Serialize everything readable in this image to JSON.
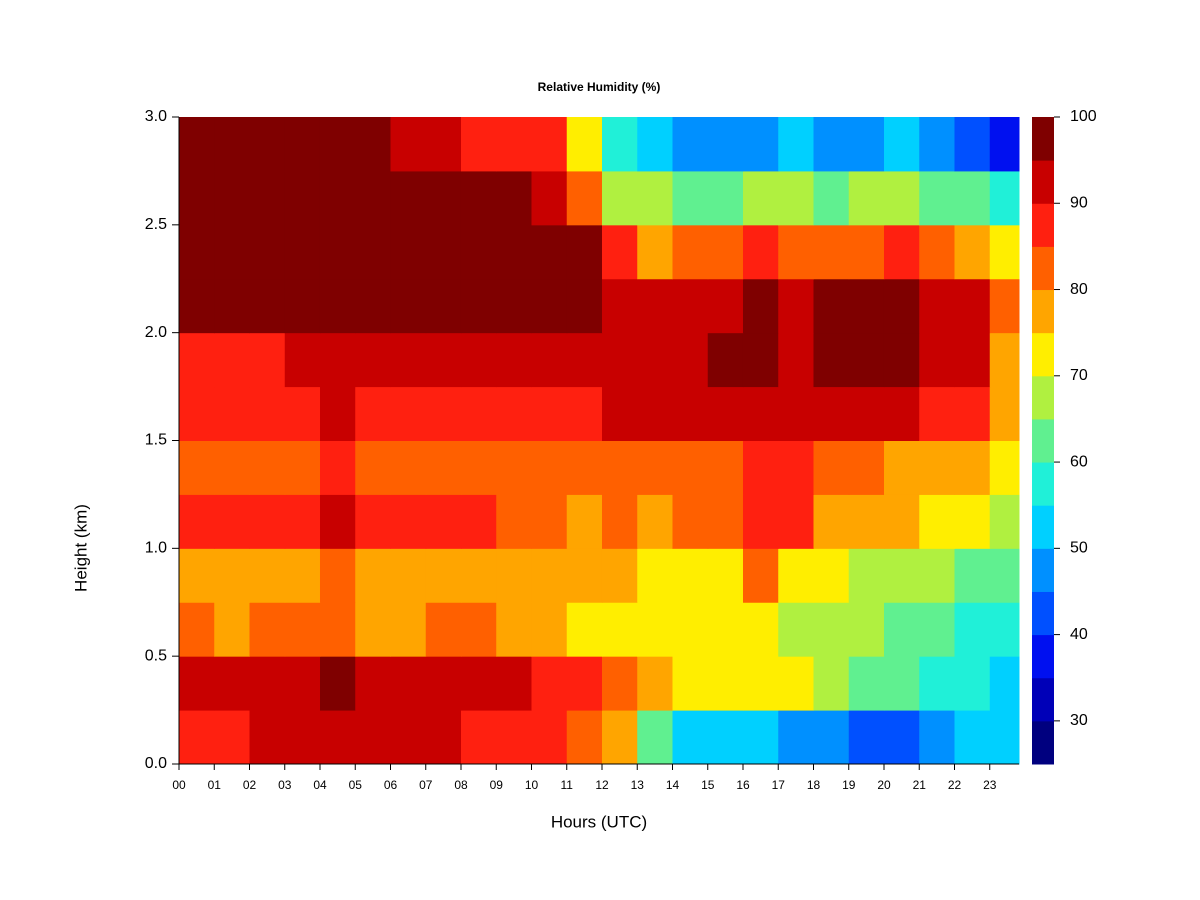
{
  "chart_data": {
    "type": "heatmap",
    "title": "Relative Humidity (%)",
    "x_label": "Hours (UTC)",
    "y_label": "Height (km)",
    "x": [
      0,
      1,
      2,
      3,
      4,
      5,
      6,
      7,
      8,
      9,
      10,
      11,
      12,
      13,
      14,
      15,
      16,
      17,
      18,
      19,
      20,
      21,
      22,
      23
    ],
    "y": [
      0,
      0.25,
      0.5,
      0.75,
      1,
      1.25,
      1.5,
      1.75,
      2,
      2.25,
      2.5,
      2.75
    ],
    "z": [
      [
        88,
        90,
        92,
        93,
        94,
        92,
        92,
        92,
        90,
        88,
        87,
        85,
        80,
        62,
        55,
        52,
        52,
        50,
        48,
        45,
        42,
        48,
        52,
        55
      ],
      [
        92,
        93,
        95,
        95,
        96,
        92,
        95,
        95,
        95,
        92,
        90,
        88,
        85,
        78,
        75,
        75,
        75,
        72,
        68,
        65,
        62,
        60,
        58,
        55
      ],
      [
        82,
        80,
        82,
        82,
        85,
        78,
        80,
        82,
        82,
        80,
        78,
        75,
        75,
        72,
        72,
        72,
        73,
        70,
        68,
        66,
        65,
        62,
        60,
        58
      ],
      [
        80,
        78,
        80,
        80,
        85,
        78,
        80,
        80,
        80,
        80,
        78,
        76,
        76,
        75,
        75,
        75,
        82,
        75,
        72,
        70,
        68,
        66,
        64,
        62
      ],
      [
        86,
        88,
        90,
        88,
        92,
        88,
        88,
        86,
        86,
        85,
        82,
        80,
        82,
        80,
        82,
        85,
        90,
        88,
        80,
        78,
        76,
        74,
        72,
        68
      ],
      [
        82,
        84,
        84,
        82,
        86,
        84,
        84,
        84,
        84,
        82,
        82,
        82,
        85,
        82,
        84,
        85,
        88,
        86,
        82,
        82,
        80,
        78,
        76,
        72
      ],
      [
        88,
        88,
        88,
        88,
        92,
        88,
        90,
        88,
        88,
        88,
        88,
        88,
        92,
        92,
        92,
        92,
        95,
        92,
        92,
        92,
        92,
        90,
        88,
        78
      ],
      [
        90,
        90,
        90,
        92,
        92,
        92,
        94,
        94,
        94,
        94,
        94,
        95,
        95,
        95,
        95,
        96,
        96,
        95,
        96,
        96,
        96,
        95,
        92,
        80
      ],
      [
        98,
        98,
        98,
        98,
        98,
        98,
        98,
        98,
        98,
        98,
        98,
        98,
        95,
        94,
        94,
        95,
        96,
        95,
        96,
        96,
        96,
        94,
        92,
        82
      ],
      [
        98,
        98,
        98,
        98,
        98,
        98,
        98,
        98,
        98,
        98,
        98,
        96,
        86,
        80,
        82,
        84,
        88,
        84,
        82,
        84,
        86,
        84,
        80,
        72
      ],
      [
        98,
        98,
        98,
        98,
        98,
        98,
        98,
        98,
        98,
        96,
        94,
        84,
        70,
        66,
        64,
        65,
        68,
        66,
        65,
        66,
        70,
        65,
        62,
        56
      ],
      [
        98,
        98,
        98,
        98,
        98,
        96,
        95,
        92,
        90,
        88,
        86,
        72,
        56,
        52,
        50,
        48,
        48,
        52,
        50,
        50,
        52,
        50,
        45,
        40
      ]
    ],
    "xlim": [
      0,
      23.83
    ],
    "ylim": [
      0,
      3
    ],
    "xticks": [
      {
        "value": 0,
        "label": "00"
      },
      {
        "value": 1,
        "label": "01"
      },
      {
        "value": 2,
        "label": "02"
      },
      {
        "value": 3,
        "label": "03"
      },
      {
        "value": 4,
        "label": "04"
      },
      {
        "value": 5,
        "label": "05"
      },
      {
        "value": 6,
        "label": "06"
      },
      {
        "value": 7,
        "label": "07"
      },
      {
        "value": 8,
        "label": "08"
      },
      {
        "value": 9,
        "label": "09"
      },
      10,
      11,
      12,
      13,
      14,
      15,
      16,
      17,
      18,
      19,
      20,
      21,
      22,
      23
    ],
    "yticks": [
      {
        "value": 0,
        "label": "0.0"
      },
      0.5,
      {
        "value": 1,
        "label": "1.0"
      },
      1.5,
      {
        "value": 2,
        "label": "2.0"
      },
      2.5,
      {
        "value": 3,
        "label": "3.0"
      }
    ],
    "levels": [
      25,
      30,
      35,
      40,
      45,
      50,
      55,
      60,
      65,
      70,
      75,
      80,
      85,
      90,
      95,
      100
    ],
    "colors": [
      "#00007f",
      "#0000b8",
      "#0010f0",
      "#0050ff",
      "#0090ff",
      "#00d0ff",
      "#20f0d8",
      "#60f090",
      "#b0f040",
      "#ffee00",
      "#ffa500",
      "#ff6000",
      "#ff2010",
      "#c80000",
      "#7f0000"
    ],
    "colorbar_ticks": [
      30,
      40,
      50,
      60,
      70,
      80,
      90,
      100
    ]
  }
}
